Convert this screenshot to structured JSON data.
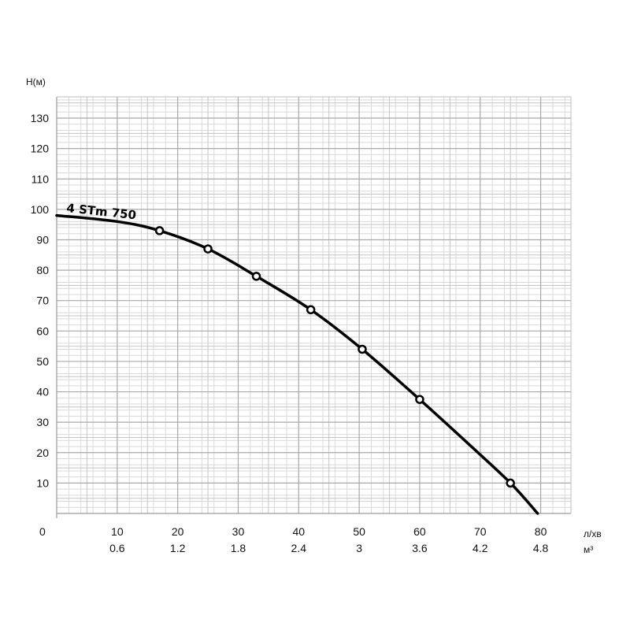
{
  "chart_data": {
    "type": "line",
    "title": "",
    "ylabel": "Н(м)",
    "xlabel": "л/хв",
    "x2label": "м³",
    "origin_label": "0",
    "xlim": [
      0,
      85
    ],
    "ylim": [
      0,
      137
    ],
    "x_ticks": [
      10,
      20,
      30,
      40,
      50,
      60,
      70,
      80
    ],
    "x2_ticks": [
      {
        "x": 10,
        "label": "0.6"
      },
      {
        "x": 20,
        "label": "1.2"
      },
      {
        "x": 30,
        "label": "1.8"
      },
      {
        "x": 40,
        "label": "2.4"
      },
      {
        "x": 50,
        "label": "3"
      },
      {
        "x": 60,
        "label": "3.6"
      },
      {
        "x": 70,
        "label": "4.2"
      },
      {
        "x": 80,
        "label": "4.8"
      }
    ],
    "y_ticks": [
      10,
      20,
      30,
      40,
      50,
      60,
      70,
      80,
      90,
      100,
      110,
      120,
      130
    ],
    "grid": true,
    "series": [
      {
        "name": "4 STm 750",
        "color": "#000000",
        "curve": [
          [
            0,
            98
          ],
          [
            10,
            96
          ],
          [
            17,
            93
          ],
          [
            25,
            87
          ],
          [
            33,
            78
          ],
          [
            42,
            67
          ],
          [
            50.5,
            54
          ],
          [
            60,
            37.5
          ],
          [
            68,
            23
          ],
          [
            75,
            10
          ],
          [
            79.5,
            0
          ]
        ],
        "markers": [
          [
            17,
            93
          ],
          [
            25,
            87
          ],
          [
            33,
            78
          ],
          [
            42,
            67
          ],
          [
            50.5,
            54
          ],
          [
            60,
            37.5
          ],
          [
            75,
            10
          ]
        ]
      }
    ]
  }
}
